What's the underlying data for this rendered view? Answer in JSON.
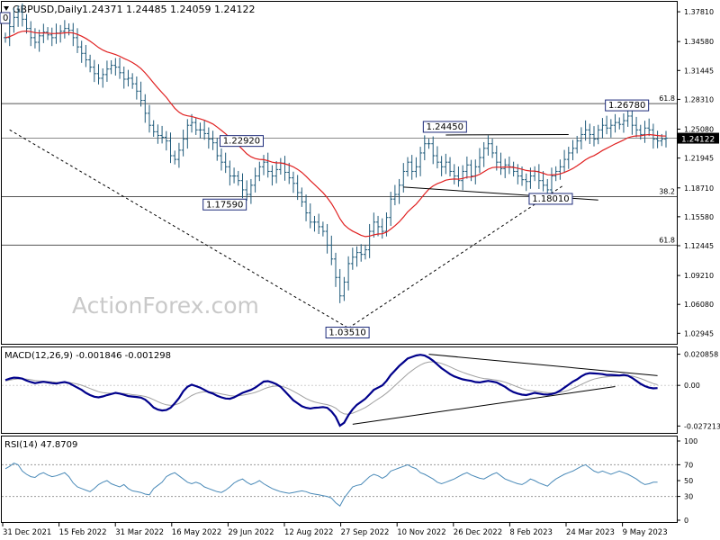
{
  "header": {
    "symbol": "GBPUSD,Daily",
    "ohlc": "1.24371 1.24485 1.24059 1.24122",
    "top_left_clip": "0"
  },
  "watermark": "ActionForex.com",
  "colors": {
    "candle": "#1f5a7a",
    "ma": "#e02020",
    "macd": "#00008b",
    "signal": "#a0a0a0",
    "rsi": "#4a8ab8",
    "fib_line": "#555555",
    "trend_line": "#000000"
  },
  "chart_data": [
    {
      "type": "candlestick",
      "panel": "price",
      "y_ticks": [
        "1.37810",
        "1.34580",
        "1.31445",
        "1.28310",
        "1.25080",
        "1.21945",
        "1.18710",
        "1.15580",
        "1.12445",
        "1.09210",
        "1.06080",
        "1.02945"
      ],
      "ylim": [
        1.02,
        1.385
      ],
      "x_labels": [
        "31 Dec 2021",
        "15 Feb 2022",
        "31 Mar 2022",
        "16 May 2022",
        "29 Jun 2022",
        "12 Aug 2022",
        "27 Sep 2022",
        "10 Nov 2022",
        "26 Dec 2022",
        "8 Feb 2023",
        "24 Mar 2023",
        "9 May 2023"
      ],
      "current_price": "1.24122",
      "fib_levels": [
        {
          "label": "61.8",
          "value": 1.2785
        },
        {
          "label": "38.2",
          "value": 1.1776
        },
        {
          "label": "61.8",
          "value": 1.125
        }
      ],
      "annotations": [
        {
          "text": "1.22920",
          "value": 1.2292
        },
        {
          "text": "1.17590",
          "value": 1.1759
        },
        {
          "text": "1.03510",
          "value": 1.0351
        },
        {
          "text": "1.24450",
          "value": 1.2445
        },
        {
          "text": "1.18010",
          "value": 1.1801
        },
        {
          "text": "1.26780",
          "value": 1.2678
        }
      ],
      "close": [
        1.35,
        1.362,
        1.372,
        1.378,
        1.37,
        1.36,
        1.35,
        1.345,
        1.352,
        1.356,
        1.353,
        1.35,
        1.355,
        1.357,
        1.36,
        1.358,
        1.35,
        1.34,
        1.333,
        1.326,
        1.318,
        1.311,
        1.306,
        1.31,
        1.316,
        1.32,
        1.318,
        1.312,
        1.305,
        1.306,
        1.3,
        1.292,
        1.282,
        1.268,
        1.255,
        1.248,
        1.244,
        1.242,
        1.238,
        1.222,
        1.218,
        1.228,
        1.24,
        1.255,
        1.258,
        1.25,
        1.25,
        1.246,
        1.24,
        1.236,
        1.222,
        1.215,
        1.21,
        1.2,
        1.2,
        1.195,
        1.185,
        1.18,
        1.19,
        1.2,
        1.21,
        1.215,
        1.205,
        1.2,
        1.207,
        1.214,
        1.204,
        1.198,
        1.192,
        1.182,
        1.172,
        1.16,
        1.15,
        1.15,
        1.145,
        1.14,
        1.125,
        1.11,
        1.09,
        1.07,
        1.085,
        1.105,
        1.112,
        1.117,
        1.115,
        1.12,
        1.14,
        1.15,
        1.145,
        1.14,
        1.155,
        1.175,
        1.18,
        1.19,
        1.205,
        1.215,
        1.205,
        1.21,
        1.225,
        1.235,
        1.235,
        1.222,
        1.215,
        1.21,
        1.215,
        1.205,
        1.2,
        1.195,
        1.205,
        1.212,
        1.2,
        1.21,
        1.22,
        1.23,
        1.235,
        1.225,
        1.215,
        1.208,
        1.212,
        1.21,
        1.205,
        1.2,
        1.196,
        1.194,
        1.2,
        1.205,
        1.195,
        1.19,
        1.185,
        1.2,
        1.205,
        1.21,
        1.218,
        1.225,
        1.23,
        1.238,
        1.245,
        1.25,
        1.245,
        1.24,
        1.25,
        1.255,
        1.252,
        1.255,
        1.258,
        1.256,
        1.26,
        1.265,
        1.255,
        1.25,
        1.245,
        1.252,
        1.25,
        1.24,
        1.238,
        1.24,
        1.241
      ],
      "ma_period_label": "",
      "trendlines": [
        {
          "from": {
            "bar": 1,
            "value": 1.25
          },
          "to": {
            "bar": 81,
            "value": 1.0351
          },
          "style": "dashed"
        },
        {
          "from": {
            "bar": 81,
            "value": 1.0351
          },
          "to": {
            "bar": 132,
            "value": 1.1905
          },
          "style": "dashed"
        },
        {
          "from": {
            "bar": 94,
            "value": 1.188
          },
          "to": {
            "bar": 140,
            "value": 1.174
          },
          "style": "solid"
        },
        {
          "from": {
            "bar": 104,
            "value": 1.2445
          },
          "to": {
            "bar": 133,
            "value": 1.245
          },
          "style": "solid"
        }
      ]
    },
    {
      "type": "line",
      "panel": "macd",
      "title": "MACD(12,26,9) -0.001846 -0.001298",
      "y_ticks": [
        "0.020858",
        "0.00",
        "-0.027213"
      ],
      "ylim": [
        -0.03,
        0.023
      ],
      "macd": [
        0.0035,
        0.0045,
        0.0052,
        0.005,
        0.0045,
        0.0032,
        0.0022,
        0.0015,
        0.002,
        0.0024,
        0.002,
        0.0015,
        0.0012,
        0.0018,
        0.0022,
        0.0015,
        0.0,
        -0.0015,
        -0.003,
        -0.005,
        -0.0065,
        -0.0076,
        -0.008,
        -0.0074,
        -0.0065,
        -0.0058,
        -0.005,
        -0.0055,
        -0.0063,
        -0.0072,
        -0.0075,
        -0.0078,
        -0.0082,
        -0.0095,
        -0.012,
        -0.0148,
        -0.0162,
        -0.0168,
        -0.0165,
        -0.015,
        -0.012,
        -0.0085,
        -0.004,
        -0.001,
        0.0005,
        -0.0005,
        -0.0015,
        -0.003,
        -0.0045,
        -0.0055,
        -0.007,
        -0.008,
        -0.0088,
        -0.009,
        -0.008,
        -0.0065,
        -0.005,
        -0.004,
        -0.003,
        -0.0015,
        0.0005,
        0.0025,
        0.0028,
        0.002,
        0.0008,
        -0.001,
        -0.004,
        -0.007,
        -0.01,
        -0.012,
        -0.014,
        -0.015,
        -0.0155,
        -0.015,
        -0.0148,
        -0.0145,
        -0.015,
        -0.0175,
        -0.021,
        -0.027,
        -0.025,
        -0.02,
        -0.016,
        -0.013,
        -0.011,
        -0.009,
        -0.006,
        -0.003,
        -0.0015,
        0.0,
        0.003,
        0.007,
        0.01,
        0.013,
        0.0155,
        0.018,
        0.019,
        0.02,
        0.0205,
        0.02,
        0.0185,
        0.0165,
        0.014,
        0.0115,
        0.0095,
        0.0075,
        0.006,
        0.005,
        0.004,
        0.0035,
        0.003,
        0.0022,
        0.002,
        0.0025,
        0.003,
        0.0025,
        0.002,
        0.0005,
        -0.001,
        -0.003,
        -0.0045,
        -0.0055,
        -0.0062,
        -0.0065,
        -0.0058,
        -0.005,
        -0.0055,
        -0.006,
        -0.0062,
        -0.0058,
        -0.005,
        -0.0035,
        -0.0015,
        0.0005,
        0.0025,
        0.004,
        0.006,
        0.0075,
        0.0082,
        0.008,
        0.0078,
        0.0075,
        0.007,
        0.007,
        0.0068,
        0.0066,
        0.007,
        0.0065,
        0.005,
        0.003,
        0.001,
        -0.0005,
        -0.0015,
        -0.002,
        -0.0018
      ],
      "signal": [
        0.003,
        0.0035,
        0.004,
        0.0043,
        0.0044,
        0.0042,
        0.0038,
        0.0033,
        0.003,
        0.0028,
        0.0026,
        0.0024,
        0.0021,
        0.002,
        0.002,
        0.0019,
        0.0015,
        0.0009,
        0.0001,
        -0.001,
        -0.0021,
        -0.0032,
        -0.0042,
        -0.0048,
        -0.0052,
        -0.0053,
        -0.0053,
        -0.0053,
        -0.0055,
        -0.0058,
        -0.0062,
        -0.0065,
        -0.0069,
        -0.0074,
        -0.0083,
        -0.0096,
        -0.0109,
        -0.0121,
        -0.013,
        -0.0134,
        -0.0131,
        -0.0122,
        -0.0105,
        -0.0086,
        -0.0068,
        -0.0055,
        -0.0047,
        -0.0043,
        -0.0044,
        -0.0046,
        -0.0051,
        -0.0057,
        -0.0063,
        -0.0069,
        -0.0071,
        -0.007,
        -0.0066,
        -0.0061,
        -0.0055,
        -0.0047,
        -0.0037,
        -0.0024,
        -0.0014,
        -0.0007,
        -0.0004,
        -0.0005,
        -0.0012,
        -0.0024,
        -0.0039,
        -0.0055,
        -0.0072,
        -0.0088,
        -0.0101,
        -0.0111,
        -0.0118,
        -0.0124,
        -0.0129,
        -0.0138,
        -0.0152,
        -0.0176,
        -0.0191,
        -0.0193,
        -0.0186,
        -0.0175,
        -0.0162,
        -0.0148,
        -0.013,
        -0.011,
        -0.0091,
        -0.0073,
        -0.0052,
        -0.0027,
        -0.0001,
        0.0025,
        0.0051,
        0.0077,
        0.0099,
        0.0119,
        0.0136,
        0.0149,
        0.0156,
        0.0158,
        0.0154,
        0.0147,
        0.0136,
        0.0124,
        0.0111,
        0.0099,
        0.0087,
        0.0077,
        0.0068,
        0.0059,
        0.0051,
        0.0046,
        0.0043,
        0.0039,
        0.0035,
        0.0029,
        0.0021,
        0.0011,
        -0.0,
        -0.0011,
        -0.0021,
        -0.003,
        -0.0035,
        -0.0038,
        -0.0041,
        -0.0045,
        -0.0048,
        -0.005,
        -0.005,
        -0.0047,
        -0.0041,
        -0.0032,
        -0.002,
        -0.0008,
        0.0006,
        0.002,
        0.0032,
        0.0042,
        0.0049,
        0.0054,
        0.0057,
        0.006,
        0.0061,
        0.0062,
        0.0063,
        0.0064,
        0.0062,
        0.0055,
        0.0046,
        0.0035,
        0.0023,
        0.0012,
        0.0004
      ],
      "trendlines": [
        {
          "from": {
            "bar": 82,
            "value": -0.026
          },
          "to": {
            "bar": 144,
            "value": -0.0008
          }
        },
        {
          "from": {
            "bar": 100,
            "value": 0.0208
          },
          "to": {
            "bar": 154,
            "value": 0.0065
          }
        }
      ]
    },
    {
      "type": "line",
      "panel": "rsi",
      "title": "RSI(14) 47.8709",
      "y_ticks": [
        "100",
        "70",
        "50",
        "30",
        "0"
      ],
      "ylim": [
        0,
        100
      ],
      "levels": [
        70,
        30
      ],
      "values": [
        65,
        68,
        72,
        70,
        62,
        58,
        55,
        54,
        58,
        60,
        57,
        55,
        56,
        58,
        60,
        55,
        47,
        42,
        40,
        38,
        36,
        40,
        45,
        48,
        50,
        46,
        44,
        42,
        45,
        40,
        37,
        36,
        35,
        33,
        32,
        40,
        44,
        48,
        55,
        58,
        60,
        56,
        52,
        48,
        46,
        48,
        46,
        42,
        40,
        38,
        36,
        35,
        38,
        42,
        47,
        50,
        52,
        48,
        45,
        47,
        50,
        46,
        43,
        40,
        38,
        36,
        35,
        34,
        35,
        36,
        37,
        36,
        34,
        33,
        32,
        31,
        30,
        28,
        22,
        18,
        28,
        35,
        42,
        44,
        45,
        50,
        55,
        58,
        56,
        53,
        56,
        62,
        64,
        66,
        68,
        70,
        67,
        65,
        60,
        58,
        55,
        52,
        48,
        46,
        48,
        50,
        52,
        55,
        58,
        60,
        57,
        55,
        53,
        52,
        55,
        58,
        60,
        56,
        52,
        50,
        48,
        46,
        45,
        48,
        52,
        50,
        47,
        45,
        43,
        48,
        52,
        55,
        58,
        60,
        62,
        65,
        68,
        70,
        66,
        62,
        60,
        62,
        60,
        58,
        60,
        62,
        60,
        58,
        55,
        52,
        48,
        45,
        46,
        48,
        48
      ]
    }
  ]
}
